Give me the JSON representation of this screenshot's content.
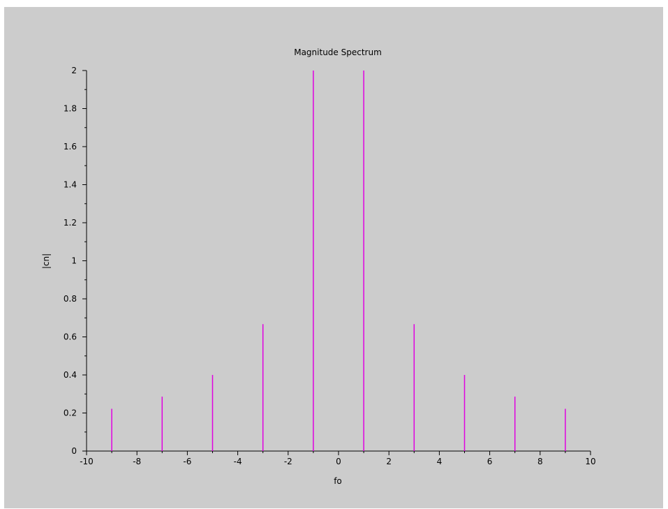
{
  "chart_data": {
    "type": "stem",
    "title": "Magnitude Spectrum",
    "xlabel": "fo",
    "ylabel": "|cn|",
    "xlim": [
      -10,
      10
    ],
    "ylim": [
      0,
      2
    ],
    "x_ticks": [
      -10,
      -8,
      -6,
      -4,
      -2,
      0,
      2,
      4,
      6,
      8,
      10
    ],
    "x_tick_labels": [
      "-10",
      "-8",
      "-6",
      "-4",
      "-2",
      "0",
      "2",
      "4",
      "6",
      "8",
      "10"
    ],
    "y_ticks": [
      0,
      0.2,
      0.4,
      0.6,
      0.8,
      1,
      1.2,
      1.4,
      1.6,
      1.8,
      2
    ],
    "y_tick_labels": [
      "0",
      "0.2",
      "0.4",
      "0.6",
      "0.8",
      "1",
      "1.2",
      "1.4",
      "1.6",
      "1.8",
      "2"
    ],
    "grid": false,
    "series": [
      {
        "color": "#e000e0",
        "x": [
          -9,
          -7,
          -5,
          -3,
          -1,
          1,
          3,
          5,
          7,
          9
        ],
        "y": [
          0.222,
          0.286,
          0.4,
          0.667,
          2,
          2,
          0.667,
          0.4,
          0.286,
          0.222
        ]
      }
    ]
  },
  "colors": {
    "figure_background": "#cccccc",
    "axis": "#000000",
    "stem": "#e000e0"
  }
}
